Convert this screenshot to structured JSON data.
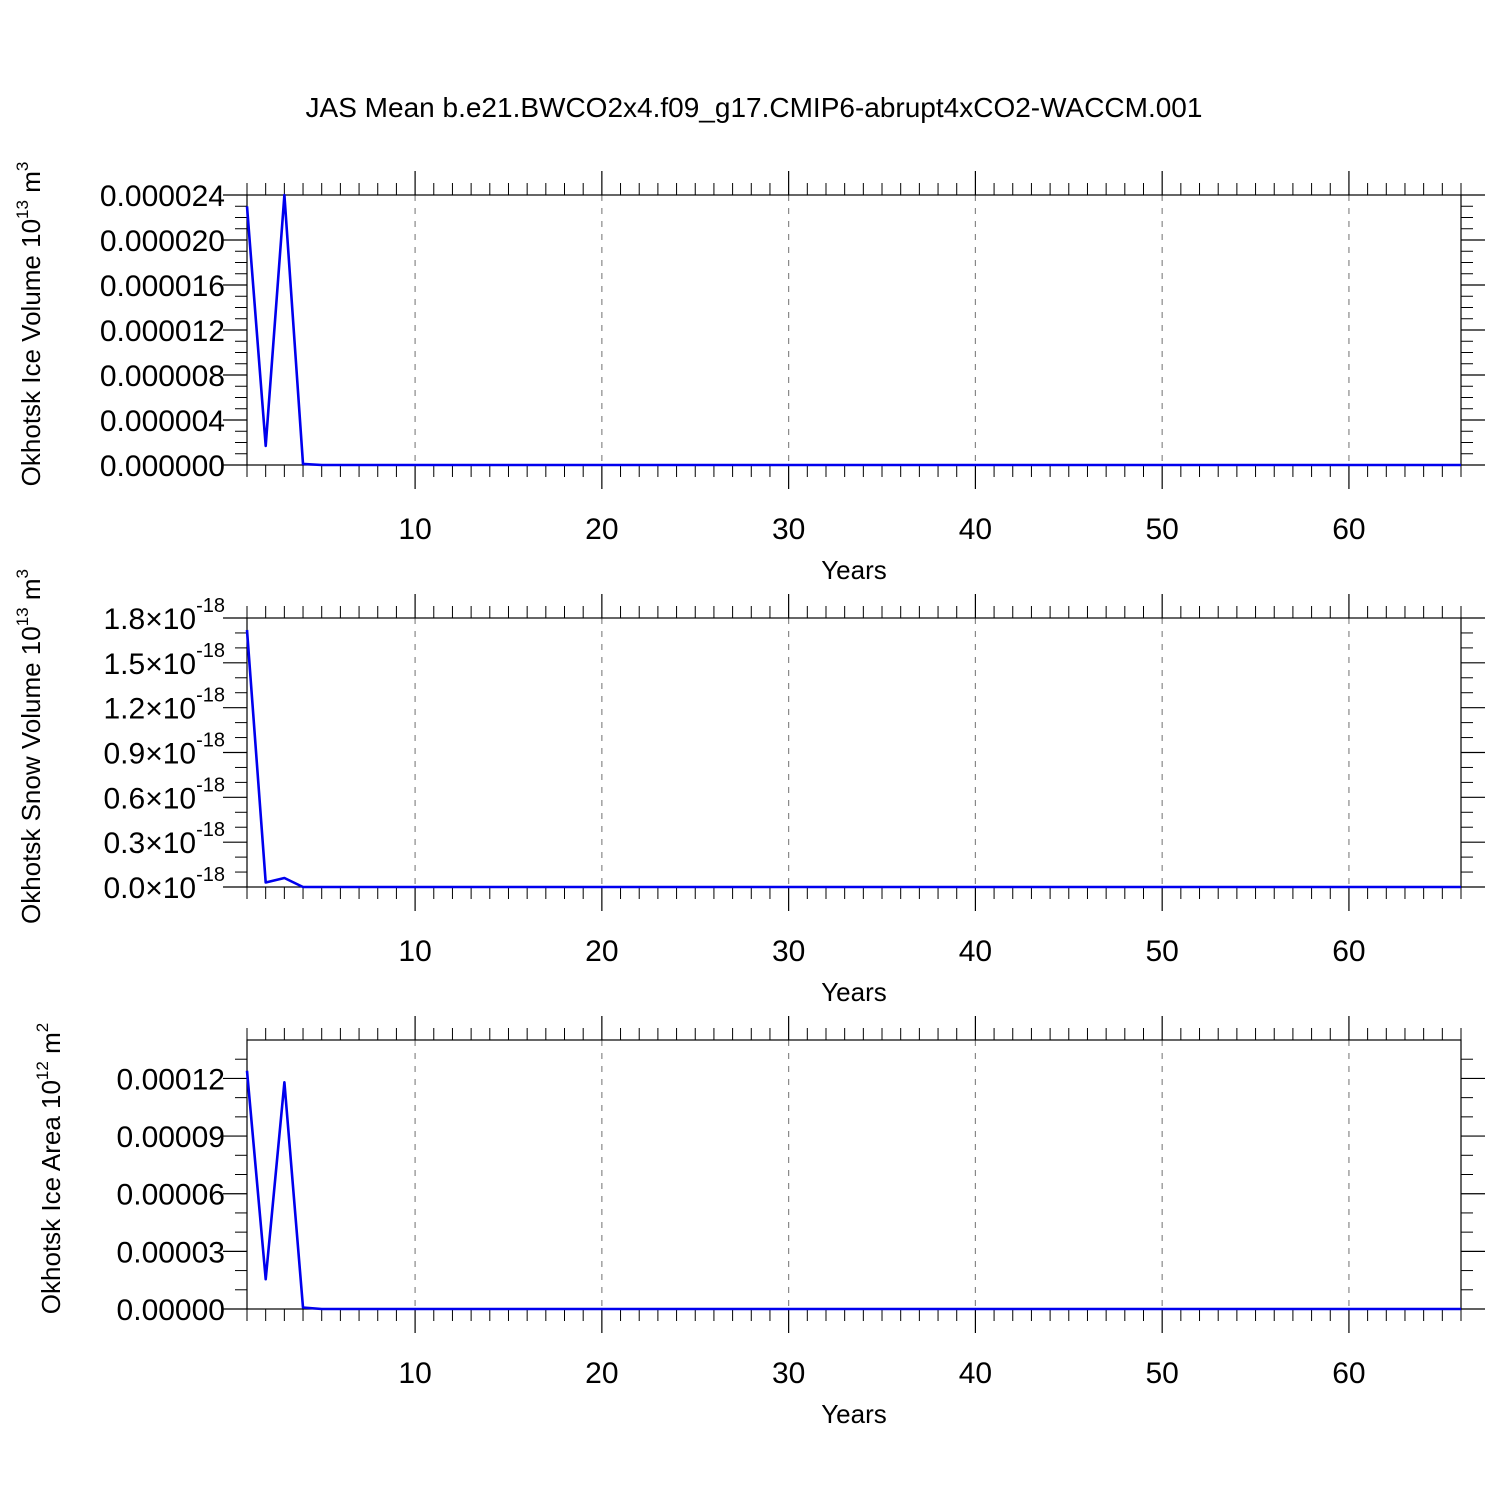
{
  "title": "JAS Mean b.e21.BWCO2x4.f09_g17.CMIP6-abrupt4xCO2-WACCM.001",
  "colors": {
    "line": "#0000ee",
    "axis": "#000000",
    "grid": "#888888"
  },
  "chart_data": [
    {
      "type": "line",
      "ylabel_main": "Okhotsk Ice Volume 10",
      "ylabel_exp": "13",
      "ylabel_unit": " m",
      "ylabel_unit_exp": "3",
      "xlabel": "Years",
      "xlim": [
        1,
        66
      ],
      "ylim": [
        0,
        2.4e-05
      ],
      "grid": "vertical dashed at major x ticks",
      "x_ticks": [
        10,
        20,
        30,
        40,
        50,
        60
      ],
      "x_tick_labels": [
        "10",
        "20",
        "30",
        "40",
        "50",
        "60"
      ],
      "y_ticks": [
        0,
        4e-06,
        8e-06,
        1.2e-05,
        1.6e-05,
        2e-05,
        2.4e-05
      ],
      "y_tick_labels": [
        "0.000000",
        "0.000004",
        "0.000008",
        "0.000012",
        "0.000016",
        "0.000020",
        "0.000024"
      ],
      "y_tick_exp": "",
      "y_minor_ticks": [
        1e-06,
        2e-06,
        3e-06,
        5e-06,
        6e-06,
        7e-06,
        9e-06,
        1e-05,
        1.1e-05,
        1.3e-05,
        1.4e-05,
        1.5e-05,
        1.7e-05,
        1.8e-05,
        1.9e-05,
        2.1e-05,
        2.2e-05,
        2.3e-05
      ],
      "series": [
        {
          "x": [
            1,
            2,
            3,
            4,
            5,
            6,
            66
          ],
          "values": [
            2.3e-05,
            1.7e-06,
            2.4e-05,
            1e-07,
            0.0,
            0.0,
            0.0
          ]
        }
      ]
    },
    {
      "type": "line",
      "ylabel_main": "Okhotsk Snow Volume 10",
      "ylabel_exp": "13",
      "ylabel_unit": " m",
      "ylabel_unit_exp": "3",
      "xlabel": "Years",
      "xlim": [
        1,
        66
      ],
      "ylim": [
        0,
        1.8
      ],
      "grid": "vertical dashed at major x ticks",
      "x_ticks": [
        10,
        20,
        30,
        40,
        50,
        60
      ],
      "x_tick_labels": [
        "10",
        "20",
        "30",
        "40",
        "50",
        "60"
      ],
      "y_ticks": [
        0,
        0.3,
        0.6,
        0.9,
        1.2,
        1.5,
        1.8
      ],
      "y_tick_labels": [
        "0.0×10",
        "0.3×10",
        "0.6×10",
        "0.9×10",
        "1.2×10",
        "1.5×10",
        "1.8×10"
      ],
      "y_tick_exp": "-18",
      "y_minor_ticks": [
        0.1,
        0.2,
        0.4,
        0.5,
        0.7,
        0.8,
        1.0,
        1.1,
        1.3,
        1.4,
        1.6,
        1.7
      ],
      "series": [
        {
          "x": [
            1,
            2,
            3,
            4,
            5,
            66
          ],
          "values": [
            1.72,
            0.03,
            0.06,
            0.0,
            0.0,
            0.0
          ]
        }
      ]
    },
    {
      "type": "line",
      "ylabel_main": "Okhotsk Ice Area 10",
      "ylabel_exp": "12",
      "ylabel_unit": " m",
      "ylabel_unit_exp": "2",
      "xlabel": "Years",
      "xlim": [
        1,
        66
      ],
      "ylim": [
        0,
        0.00014
      ],
      "grid": "vertical dashed at major x ticks",
      "x_ticks": [
        10,
        20,
        30,
        40,
        50,
        60
      ],
      "x_tick_labels": [
        "10",
        "20",
        "30",
        "40",
        "50",
        "60"
      ],
      "y_ticks": [
        0,
        3e-05,
        6e-05,
        9e-05,
        0.00012
      ],
      "y_tick_labels": [
        "0.00000",
        "0.00003",
        "0.00006",
        "0.00009",
        "0.00012"
      ],
      "y_tick_exp": "",
      "y_minor_ticks": [
        1e-05,
        2e-05,
        4e-05,
        5e-05,
        7e-05,
        8e-05,
        0.0001,
        0.00011,
        0.00013
      ],
      "series": [
        {
          "x": [
            1,
            2,
            3,
            4,
            5,
            6,
            66
          ],
          "values": [
            0.000124,
            1.55e-05,
            0.000118,
            8e-07,
            0.0,
            0.0,
            0.0
          ]
        }
      ]
    }
  ]
}
